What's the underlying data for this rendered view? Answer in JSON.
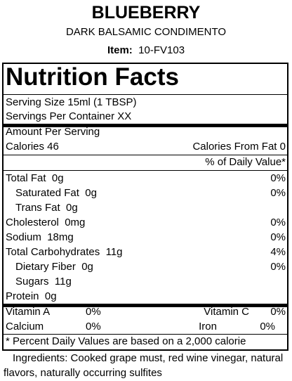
{
  "header": {
    "title": "BLUEBERRY",
    "subtitle": "DARK BALSAMIC CONDIMENTO",
    "item_label": "Item:",
    "item_value": "10-FV103"
  },
  "label": {
    "title": "Nutrition Facts",
    "serving_size": "Serving Size  15ml (1 TBSP)",
    "servings_per_container": "Servings Per Container  XX",
    "amount_per_serving": "Amount Per Serving",
    "calories": "Calories 46",
    "calories_from_fat": "Calories From Fat 0",
    "daily_value_header": "% of Daily Value*",
    "rows": [
      {
        "name": "Total Fat",
        "amount": "0g",
        "dv": "0%"
      },
      {
        "name": "Saturated Fat",
        "amount": "0g",
        "dv": "0%"
      },
      {
        "name": "Trans Fat",
        "amount": "0g"
      },
      {
        "name": "Cholesterol",
        "amount": "0mg",
        "dv": "0%"
      },
      {
        "name": "Sodium",
        "amount": "18mg",
        "dv": "0%"
      },
      {
        "name": "Total Carbohydrates",
        "amount": "11g",
        "dv": "4%"
      },
      {
        "name": "Dietary Fiber",
        "amount": "0g",
        "dv": "0%"
      },
      {
        "name": "Sugars",
        "amount": "11g"
      },
      {
        "name": "Protein",
        "amount": "0g"
      }
    ],
    "vitamins": [
      [
        {
          "name": "Vitamin A",
          "dv": "0%"
        },
        {
          "name": "Vitamin C",
          "dv": "0%"
        }
      ],
      [
        {
          "name": "Calcium",
          "dv": "0%"
        },
        {
          "name": "Iron",
          "dv": "0%"
        }
      ]
    ],
    "footnote": "* Percent Daily Values are based on a 2,000 calorie"
  },
  "ingredients": "Ingredients: Cooked grape must, red wine vinegar, natural flavors, naturally occurring sulfites"
}
